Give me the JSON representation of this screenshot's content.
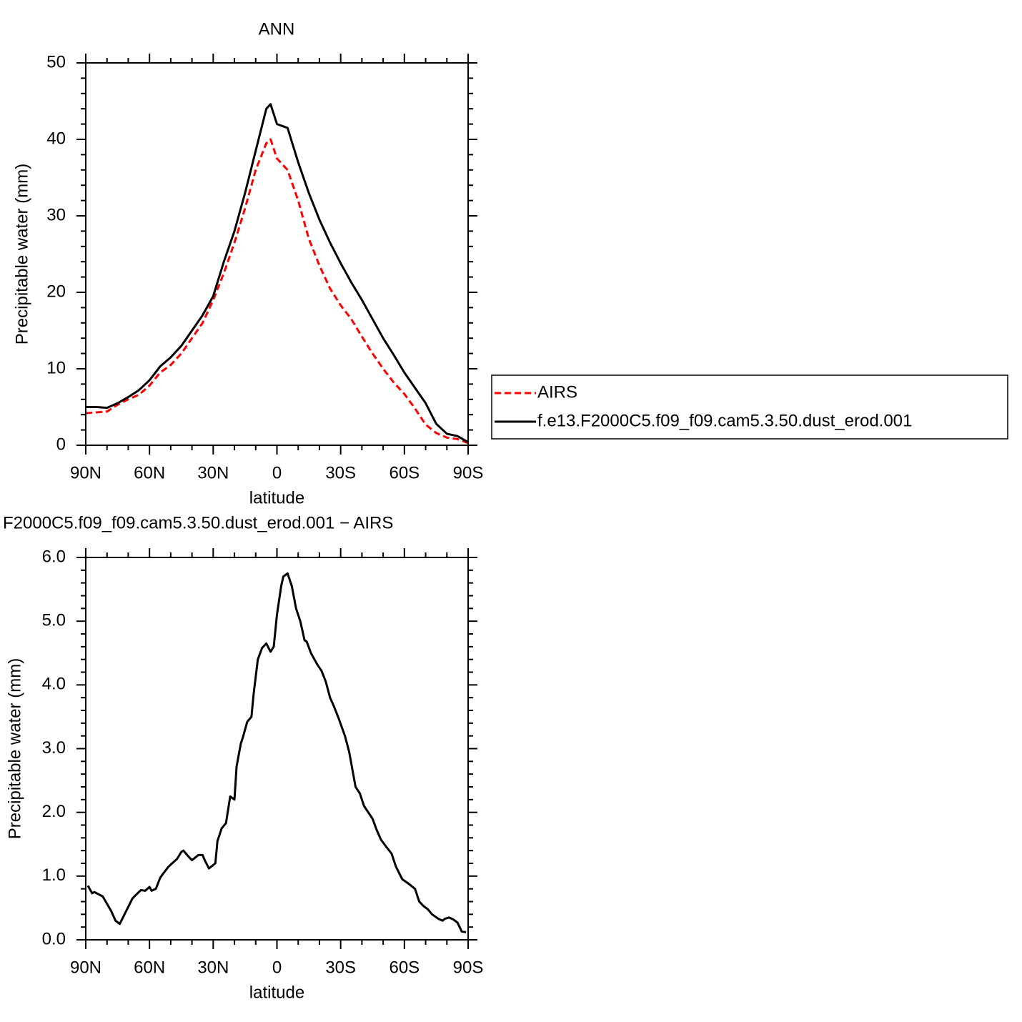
{
  "chart_data": [
    {
      "type": "line",
      "title": "ANN",
      "xlabel": "latitude",
      "ylabel": "Precipitable water (mm)",
      "x": [
        90,
        85,
        80,
        75,
        70,
        65,
        60,
        55,
        50,
        45,
        40,
        35,
        30,
        25,
        20,
        15,
        10,
        5,
        3,
        0,
        -5,
        -10,
        -15,
        -20,
        -25,
        -30,
        -35,
        -40,
        -45,
        -50,
        -55,
        -60,
        -65,
        -70,
        -75,
        -80,
        -85,
        -90
      ],
      "series": [
        {
          "name": "AIRS",
          "color": "#ff0000",
          "linestyle": "dashed",
          "values": [
            4.2,
            4.3,
            4.4,
            5.3,
            6.0,
            6.6,
            7.8,
            9.5,
            10.5,
            12.0,
            14.0,
            16.0,
            19.0,
            22.5,
            26.5,
            31.0,
            36.0,
            39.5,
            40.0,
            37.5,
            36.0,
            32.0,
            27.0,
            23.5,
            20.5,
            18.3,
            16.5,
            14.2,
            12.0,
            10.0,
            8.2,
            6.7,
            4.8,
            2.7,
            1.6,
            1.0,
            0.8,
            0.3
          ]
        },
        {
          "name": "f.e13.F2000C5.f09_f09.cam5.3.50.dust_erod.001",
          "color": "#000000",
          "linestyle": "solid",
          "values": [
            5.0,
            5.0,
            4.9,
            5.5,
            6.3,
            7.2,
            8.5,
            10.3,
            11.5,
            13.0,
            15.0,
            17.0,
            19.5,
            24.0,
            28.0,
            33.0,
            38.5,
            44.0,
            44.6,
            42.0,
            41.5,
            37.0,
            33.0,
            29.5,
            26.5,
            23.8,
            21.3,
            19.0,
            16.5,
            14.0,
            11.8,
            9.5,
            7.5,
            5.5,
            2.8,
            1.5,
            1.2,
            0.4
          ]
        }
      ],
      "xlim": [
        90,
        -90
      ],
      "xticks": [
        {
          "value": 90,
          "label": "90N"
        },
        {
          "value": 60,
          "label": "60N"
        },
        {
          "value": 30,
          "label": "30N"
        },
        0,
        {
          "value": -30,
          "label": "30S"
        },
        {
          "value": -60,
          "label": "60S"
        },
        {
          "value": -90,
          "label": "90S"
        }
      ],
      "ylim": [
        0,
        50
      ],
      "yticks": [
        0,
        10,
        20,
        30,
        40,
        50
      ],
      "legend": "right"
    },
    {
      "type": "line",
      "title": "F2000C5.f09_f09.cam5.3.50.dust_erod.001 − AIRS",
      "xlabel": "latitude",
      "ylabel": "Precipitable water (mm)",
      "x": [
        89,
        87,
        86,
        82,
        78,
        76,
        74,
        71,
        68,
        65,
        64,
        62,
        60,
        59,
        57,
        55,
        54,
        51,
        50,
        47,
        45,
        44,
        42,
        40,
        37,
        35,
        34,
        32,
        29,
        28,
        26,
        24,
        22,
        20,
        19,
        17,
        16,
        14,
        12,
        11,
        9,
        7,
        5,
        3,
        1.5,
        0,
        -2,
        -3,
        -5,
        -7,
        -9,
        -11,
        -13,
        -14,
        -16,
        -19,
        -21,
        -23,
        -25,
        -27,
        -29,
        -32,
        -34,
        -37,
        -39,
        -41,
        -45,
        -47,
        -49,
        -51,
        -54,
        -56,
        -59,
        -62,
        -65,
        -67,
        -69,
        -71,
        -73,
        -76,
        -78,
        -79,
        -81,
        -83,
        -85,
        -87,
        -89
      ],
      "series": [
        {
          "name": null,
          "color": "#000000",
          "linestyle": "solid",
          "values": [
            0.85,
            0.73,
            0.75,
            0.68,
            0.45,
            0.3,
            0.25,
            0.45,
            0.65,
            0.75,
            0.78,
            0.77,
            0.83,
            0.77,
            0.8,
            0.97,
            1.02,
            1.15,
            1.18,
            1.27,
            1.38,
            1.4,
            1.32,
            1.25,
            1.33,
            1.33,
            1.25,
            1.12,
            1.2,
            1.55,
            1.75,
            1.83,
            2.25,
            2.2,
            2.72,
            3.08,
            3.18,
            3.42,
            3.5,
            3.85,
            4.4,
            4.58,
            4.65,
            4.52,
            4.6,
            5.1,
            5.55,
            5.7,
            5.75,
            5.55,
            5.2,
            5.0,
            4.7,
            4.68,
            4.5,
            4.32,
            4.22,
            4.05,
            3.8,
            3.65,
            3.48,
            3.2,
            2.95,
            2.4,
            2.3,
            2.1,
            1.9,
            1.72,
            1.57,
            1.48,
            1.35,
            1.15,
            0.95,
            0.88,
            0.8,
            0.6,
            0.53,
            0.48,
            0.4,
            0.33,
            0.3,
            0.33,
            0.35,
            0.32,
            0.27,
            0.13,
            0.12
          ]
        }
      ],
      "xlim": [
        90,
        -90
      ],
      "xticks": [
        {
          "value": 90,
          "label": "90N"
        },
        {
          "value": 60,
          "label": "60N"
        },
        {
          "value": 30,
          "label": "30N"
        },
        0,
        {
          "value": -30,
          "label": "30S"
        },
        {
          "value": -60,
          "label": "60S"
        },
        {
          "value": -90,
          "label": "90S"
        }
      ],
      "ylim": [
        0,
        6
      ],
      "yticks": [
        {
          "value": 0,
          "label": "0.0"
        },
        {
          "value": 1,
          "label": "1.0"
        },
        {
          "value": 2,
          "label": "2.0"
        },
        {
          "value": 3,
          "label": "3.0"
        },
        {
          "value": 4,
          "label": "4.0"
        },
        {
          "value": 5,
          "label": "5.0"
        },
        {
          "value": 6,
          "label": "6.0"
        }
      ]
    }
  ]
}
